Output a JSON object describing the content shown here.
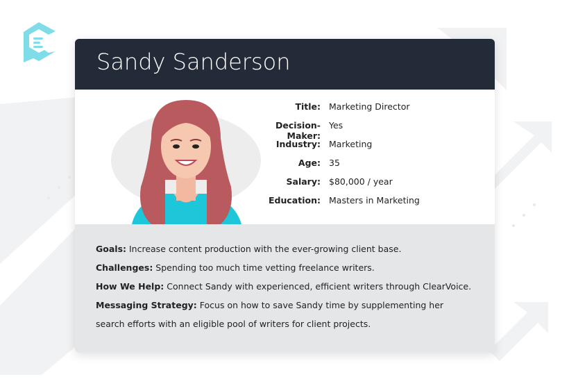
{
  "persona": {
    "name": "Sandy Sanderson",
    "facts": [
      {
        "label": "Title:",
        "value": "Marketing Director"
      },
      {
        "label": "Decision-Maker:",
        "value": "Yes"
      },
      {
        "label": "Industry:",
        "value": "Marketing"
      },
      {
        "label": "Age:",
        "value": "35"
      },
      {
        "label": "Salary:",
        "value": "$80,000 / year"
      },
      {
        "label": "Education:",
        "value": "Masters in Marketing"
      }
    ],
    "details": [
      {
        "label": "Goals:",
        "value": " Increase content production with the ever-growing client base."
      },
      {
        "label": "Challenges:",
        "value": " Spending too much time vetting freelance writers."
      },
      {
        "label": "How We Help:",
        "value": " Connect Sandy with experienced, efficient writers through ClearVoice."
      },
      {
        "label": "Messaging Strategy:",
        "value": " Focus on how to save Sandy time by supplementing her search efforts with an eligible pool of writers for client projects."
      }
    ]
  },
  "colors": {
    "header": "#242b38",
    "logo": "#7fdde9",
    "panel": "#e5e6e8",
    "hair": "#b85a5e",
    "shirt": "#1ec6d9"
  },
  "icons": {
    "logo": "clearvoice-logo",
    "avatar": "woman-avatar"
  }
}
